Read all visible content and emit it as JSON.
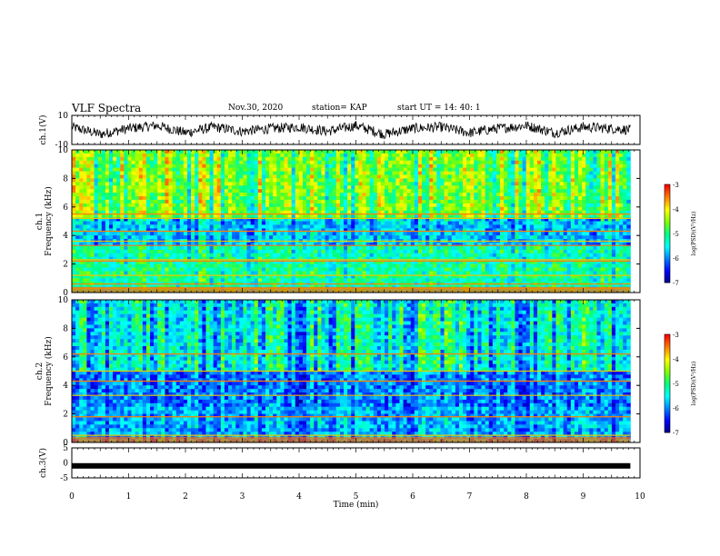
{
  "header": {
    "title": "VLF Spectra",
    "date": "Nov.30, 2020",
    "station": "station= KAP",
    "start": "start  UT =   14: 40: 1"
  },
  "chart_data": [
    {
      "type": "line",
      "panel": "ch1-waveform",
      "ylabel": "ch.1(V)",
      "yticks": [
        "10",
        "-10"
      ],
      "ylim": [
        -10,
        10
      ],
      "x": [
        0,
        0.5,
        1,
        1.5,
        2,
        2.5,
        3,
        3.5,
        4,
        4.5,
        5,
        5.5,
        6,
        6.5,
        7,
        7.5,
        8,
        8.5,
        9,
        9.5,
        9.83
      ],
      "values": [
        2,
        -3,
        1,
        3,
        -2,
        2,
        -1,
        1,
        2,
        -1,
        3,
        -3,
        1,
        2,
        -2,
        1,
        3,
        -2,
        2,
        1,
        0
      ],
      "xlim": [
        0,
        10
      ]
    },
    {
      "type": "heatmap",
      "panel": "ch1-spectrogram",
      "ylabel": "ch.1  Frequency (kHz)",
      "yticks": [
        "0",
        "2",
        "4",
        "6",
        "8",
        "10"
      ],
      "ylim": [
        0,
        10
      ],
      "xlim": [
        0,
        9.83
      ],
      "colorbar": {
        "label": "log(PSD)(V²/Hz)",
        "ticks": [
          "-3",
          "-4",
          "-5",
          "-6",
          "-7"
        ],
        "range": [
          -7,
          -3
        ]
      },
      "bands_khz": [
        0.3,
        0.6,
        1.2,
        2.2,
        2.3,
        3.3,
        3.6,
        4.3,
        5.2,
        5.5
      ],
      "band_levels": [
        {
          "f_min": 0,
          "f_max": 2,
          "log_psd": -5.2
        },
        {
          "f_min": 2,
          "f_max": 3.2,
          "log_psd": -5.3
        },
        {
          "f_min": 3.2,
          "f_max": 5.2,
          "log_psd": -5.8
        },
        {
          "f_min": 5.2,
          "f_max": 10,
          "log_psd": -4.8
        }
      ]
    },
    {
      "type": "heatmap",
      "panel": "ch2-spectrogram",
      "ylabel": "ch.2  Frequency (kHz)",
      "yticks": [
        "0",
        "2",
        "4",
        "6",
        "8",
        "10"
      ],
      "ylim": [
        0,
        10
      ],
      "xlim": [
        0,
        9.83
      ],
      "colorbar": {
        "label": "log(PSD)(V²/Hz)",
        "ticks": [
          "-3",
          "-4",
          "-5",
          "-6",
          "-7"
        ],
        "range": [
          -7,
          -3
        ]
      },
      "bands_khz": [
        0.5,
        1.8,
        3.3,
        4.3,
        5.0,
        6.2
      ],
      "band_levels": [
        {
          "f_min": 0,
          "f_max": 2.5,
          "log_psd": -5.9
        },
        {
          "f_min": 2.5,
          "f_max": 5,
          "log_psd": -6.1
        },
        {
          "f_min": 5,
          "f_max": 10,
          "log_psd": -5.6
        }
      ]
    },
    {
      "type": "line",
      "panel": "ch3-waveform",
      "ylabel": "ch.3(V)",
      "yticks": [
        "5",
        "0",
        "-5"
      ],
      "ylim": [
        -5,
        5
      ],
      "x": [
        0,
        9.83
      ],
      "values": [
        -1,
        -1
      ],
      "xlim": [
        0,
        10
      ]
    }
  ],
  "xaxis": {
    "label": "Time  (min)",
    "ticks": [
      "0",
      "1",
      "2",
      "3",
      "4",
      "5",
      "6",
      "7",
      "8",
      "9",
      "10"
    ],
    "range": [
      0,
      10
    ]
  },
  "colormap": [
    "#000080",
    "#0000ff",
    "#0080ff",
    "#00ffff",
    "#00ff80",
    "#80ff00",
    "#ffff00",
    "#ff8000",
    "#ff0000",
    "#ffffff"
  ]
}
